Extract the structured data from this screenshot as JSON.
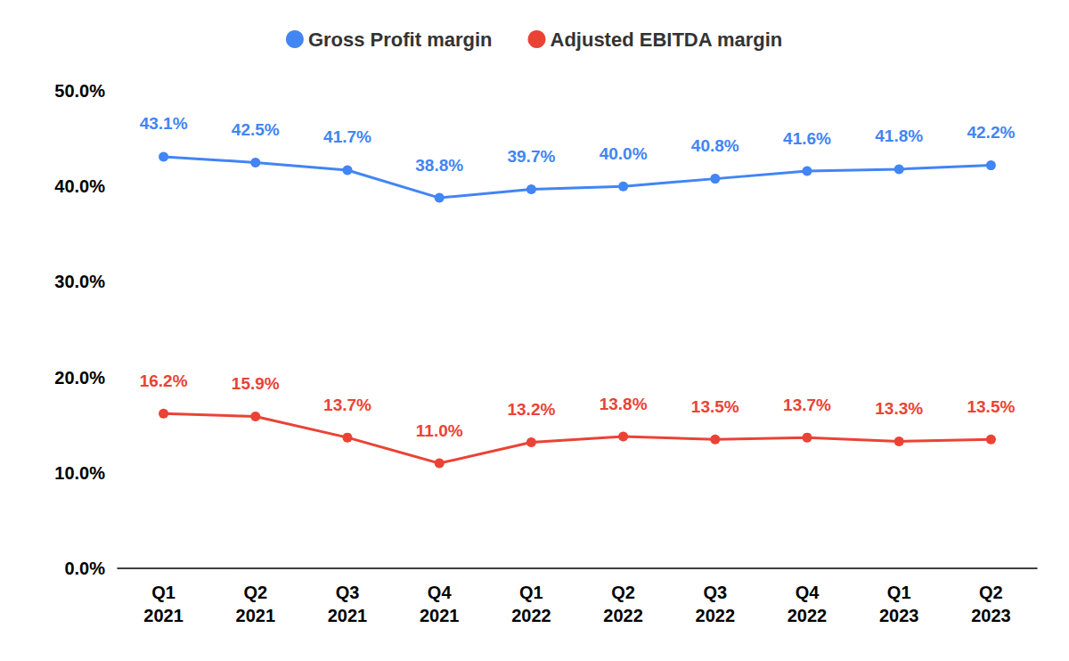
{
  "chart_data": {
    "type": "line",
    "categories": [
      "Q1\n2021",
      "Q2\n2021",
      "Q3\n2021",
      "Q4\n2021",
      "Q1\n2022",
      "Q2\n2022",
      "Q3\n2022",
      "Q4\n2022",
      "Q1\n2023",
      "Q2\n2023"
    ],
    "series": [
      {
        "name": "Gross Profit margin",
        "color": "#4285f4",
        "marker": "circle",
        "values": [
          43.1,
          42.5,
          41.7,
          38.8,
          39.7,
          40.0,
          40.8,
          41.6,
          41.8,
          42.2
        ],
        "value_labels": [
          "43.1%",
          "42.5%",
          "41.7%",
          "38.8%",
          "39.7%",
          "40.0%",
          "40.8%",
          "41.6%",
          "41.8%",
          "42.2%"
        ]
      },
      {
        "name": "Adjusted EBITDA margin",
        "color": "#ea4335",
        "marker": "circle",
        "values": [
          16.2,
          15.9,
          13.7,
          11.0,
          13.2,
          13.8,
          13.5,
          13.7,
          13.3,
          13.5
        ],
        "value_labels": [
          "16.2%",
          "15.9%",
          "13.7%",
          "11.0%",
          "13.2%",
          "13.8%",
          "13.5%",
          "13.7%",
          "13.3%",
          "13.5%"
        ]
      }
    ],
    "ylim": [
      0,
      50
    ],
    "yticks": [
      {
        "value": 0,
        "label": "0.0%"
      },
      {
        "value": 10,
        "label": "10.0%"
      },
      {
        "value": 20,
        "label": "20.0%"
      },
      {
        "value": 30,
        "label": "30.0%"
      },
      {
        "value": 40,
        "label": "40.0%"
      },
      {
        "value": 50,
        "label": "50.0%"
      }
    ],
    "grid": false,
    "legend": "top",
    "data_labels": true
  }
}
